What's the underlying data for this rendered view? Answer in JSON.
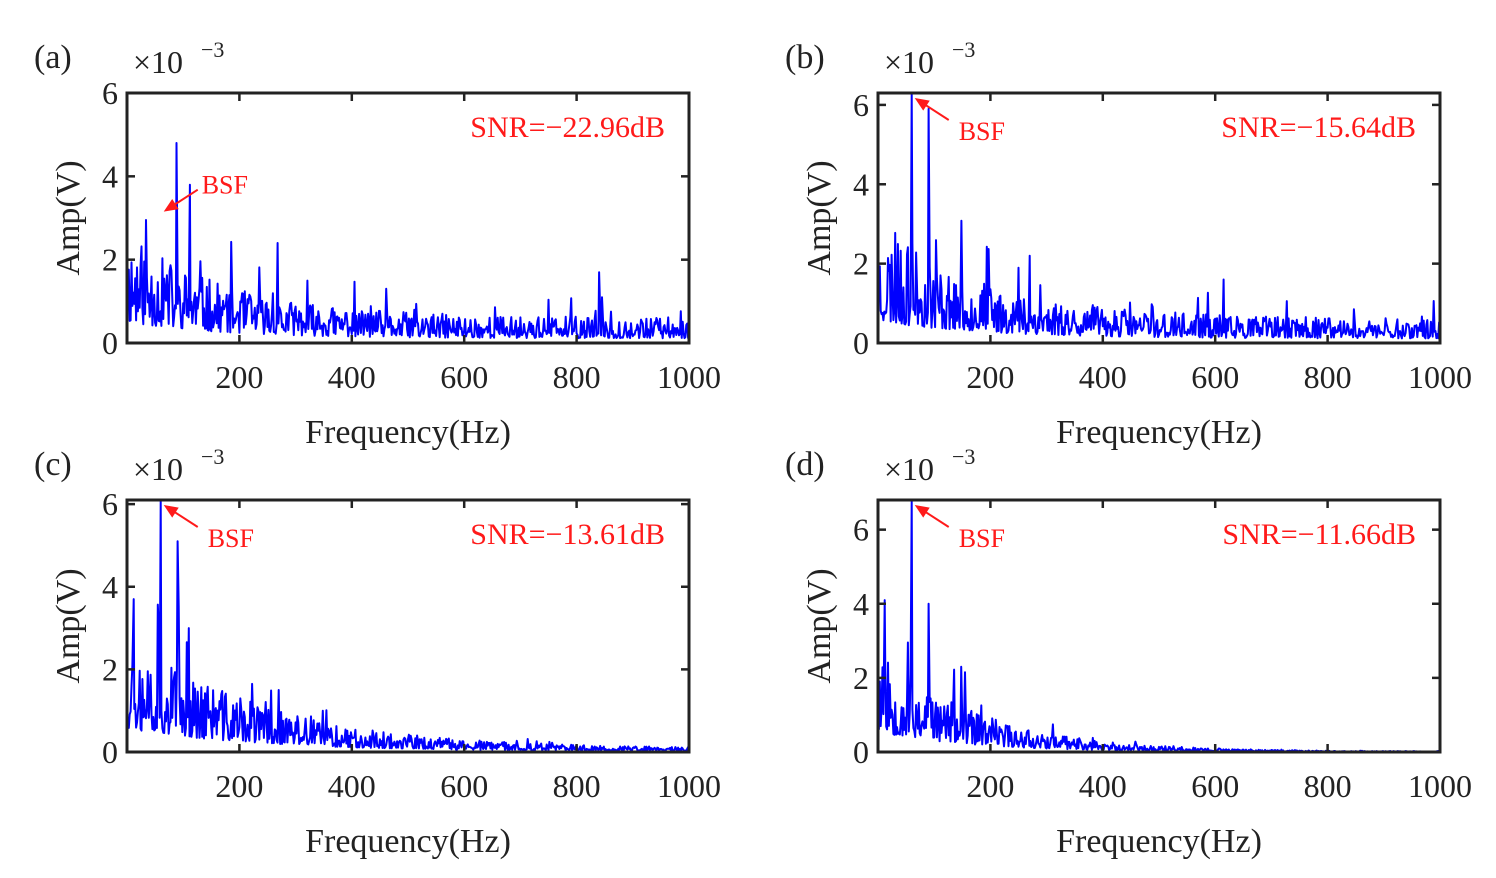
{
  "figure": {
    "colors": {
      "series": "#0000ff",
      "annotation": "#ff1a1a",
      "axis": "#222222"
    }
  },
  "chart_data": [
    {
      "type": "line",
      "panel_label": "(a)",
      "xlabel": "Frequency(Hz)",
      "ylabel": "Amp(V)",
      "scale_base": "×10",
      "scale_exponent": "−3",
      "xlim": [
        0,
        1000
      ],
      "ylim": [
        0,
        6
      ],
      "xticks": [
        200,
        400,
        600,
        800,
        1000
      ],
      "yticks": [
        0,
        2,
        4,
        6
      ],
      "snr_text": "SNR=−22.96dB",
      "bsf": {
        "text": "BSF",
        "x": 60,
        "y": 3.2
      },
      "notable_peaks": [
        {
          "x": 88,
          "y": 4.8
        },
        {
          "x": 112,
          "y": 3.8
        },
        {
          "x": 268,
          "y": 2.4
        },
        {
          "x": 840,
          "y": 1.7
        }
      ],
      "noise": {
        "start": 2.0,
        "mid": 0.9,
        "end": 0.45,
        "decay_hz": 180,
        "seed": 11
      }
    },
    {
      "type": "line",
      "panel_label": "(b)",
      "xlabel": "Frequency(Hz)",
      "ylabel": "Amp(V)",
      "scale_base": "×10",
      "scale_exponent": "−3",
      "xlim": [
        0,
        1000
      ],
      "ylim": [
        0,
        6.3
      ],
      "xticks": [
        200,
        400,
        600,
        800,
        1000
      ],
      "yticks": [
        0,
        2,
        4,
        6
      ],
      "snr_text": "SNR=−15.64dB",
      "bsf": {
        "text": "BSF",
        "x": 60,
        "y": 6.3
      },
      "notable_peaks": [
        {
          "x": 60,
          "y": 6.3
        },
        {
          "x": 90,
          "y": 5.9
        },
        {
          "x": 270,
          "y": 2.2
        },
        {
          "x": 615,
          "y": 1.6
        }
      ],
      "noise": {
        "start": 2.2,
        "mid": 0.9,
        "end": 0.45,
        "decay_hz": 200,
        "seed": 23
      }
    },
    {
      "type": "line",
      "panel_label": "(c)",
      "xlabel": "Frequency(Hz)",
      "ylabel": "Amp(V)",
      "scale_base": "×10",
      "scale_exponent": "−3",
      "xlim": [
        0,
        1000
      ],
      "ylim": [
        0,
        6.1
      ],
      "xticks": [
        200,
        400,
        600,
        800,
        1000
      ],
      "yticks": [
        0,
        2,
        4,
        6
      ],
      "snr_text": "SNR=−13.61dB",
      "bsf": {
        "text": "BSF",
        "x": 60,
        "y": 6.1
      },
      "notable_peaks": [
        {
          "x": 60,
          "y": 6.1
        },
        {
          "x": 90,
          "y": 5.1
        },
        {
          "x": 12,
          "y": 3.7
        },
        {
          "x": 110,
          "y": 3.0
        },
        {
          "x": 270,
          "y": 1.5
        }
      ],
      "noise": {
        "start": 2.3,
        "mid": 1.1,
        "end": 0.06,
        "decay_hz": 230,
        "seed": 37
      }
    },
    {
      "type": "line",
      "panel_label": "(d)",
      "xlabel": "Frequency(Hz)",
      "ylabel": "Amp(V)",
      "scale_base": "×10",
      "scale_exponent": "−3",
      "xlim": [
        0,
        1000
      ],
      "ylim": [
        0,
        6.8
      ],
      "xticks": [
        200,
        400,
        600,
        800,
        1000
      ],
      "yticks": [
        0,
        2,
        4,
        6
      ],
      "snr_text": "SNR=−11.66dB",
      "bsf": {
        "text": "BSF",
        "x": 60,
        "y": 6.8
      },
      "notable_peaks": [
        {
          "x": 60,
          "y": 6.8
        },
        {
          "x": 90,
          "y": 4.0
        },
        {
          "x": 12,
          "y": 4.1
        },
        {
          "x": 148,
          "y": 2.3
        }
      ],
      "noise": {
        "start": 2.2,
        "mid": 0.9,
        "end": 0.01,
        "decay_hz": 170,
        "seed": 53
      }
    }
  ]
}
